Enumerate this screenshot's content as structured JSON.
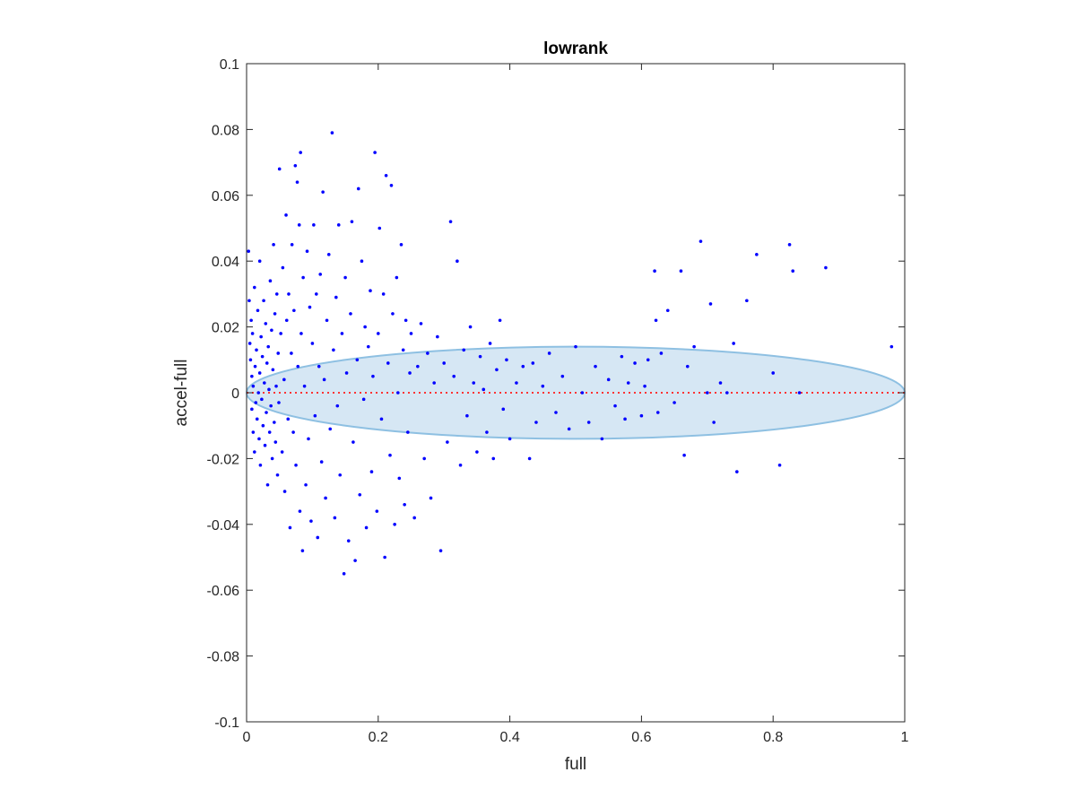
{
  "chart_data": {
    "type": "scatter",
    "title": "lowrank",
    "xlabel": "full",
    "ylabel": "accel-full",
    "xlim": [
      0,
      1
    ],
    "ylim": [
      -0.1,
      0.1
    ],
    "x_ticks": [
      "0",
      "0.2",
      "0.4",
      "0.6",
      "0.8",
      "1"
    ],
    "y_ticks": [
      "-0.1",
      "-0.08",
      "-0.06",
      "-0.04",
      "-0.02",
      "0",
      "0.02",
      "0.04",
      "0.06",
      "0.08",
      "0.1"
    ],
    "grid": false,
    "point_color": "#0000ff",
    "reference_line": {
      "y": 0,
      "color": "#ff3333",
      "style": "dotted"
    },
    "ellipse": {
      "center_x": 0.5,
      "center_y": 0,
      "radius_x": 0.5,
      "radius_y": 0.014,
      "fill": "#d6e7f4",
      "stroke": "#8ec0e2"
    },
    "points": [
      [
        0.003,
        0.043
      ],
      [
        0.004,
        0.028
      ],
      [
        0.005,
        0.015
      ],
      [
        0.006,
        0.01
      ],
      [
        0.007,
        0.022
      ],
      [
        0.008,
        0.005
      ],
      [
        0.008,
        -0.005
      ],
      [
        0.009,
        0.018
      ],
      [
        0.01,
        -0.012
      ],
      [
        0.01,
        0.002
      ],
      [
        0.012,
        0.032
      ],
      [
        0.012,
        -0.018
      ],
      [
        0.013,
        0.008
      ],
      [
        0.014,
        -0.003
      ],
      [
        0.015,
        0.013
      ],
      [
        0.016,
        -0.008
      ],
      [
        0.017,
        0.025
      ],
      [
        0.018,
        0.0
      ],
      [
        0.019,
        -0.014
      ],
      [
        0.02,
        0.04
      ],
      [
        0.02,
        0.006
      ],
      [
        0.021,
        -0.022
      ],
      [
        0.022,
        0.017
      ],
      [
        0.023,
        -0.002
      ],
      [
        0.024,
        0.011
      ],
      [
        0.025,
        -0.01
      ],
      [
        0.026,
        0.028
      ],
      [
        0.027,
        0.003
      ],
      [
        0.028,
        -0.016
      ],
      [
        0.029,
        0.021
      ],
      [
        0.03,
        -0.006
      ],
      [
        0.031,
        0.009
      ],
      [
        0.032,
        -0.028
      ],
      [
        0.033,
        0.014
      ],
      [
        0.034,
        0.001
      ],
      [
        0.035,
        -0.012
      ],
      [
        0.036,
        0.034
      ],
      [
        0.037,
        -0.004
      ],
      [
        0.038,
        0.019
      ],
      [
        0.039,
        -0.02
      ],
      [
        0.04,
        0.007
      ],
      [
        0.041,
        0.045
      ],
      [
        0.042,
        -0.009
      ],
      [
        0.043,
        0.024
      ],
      [
        0.044,
        -0.015
      ],
      [
        0.045,
        0.002
      ],
      [
        0.046,
        0.03
      ],
      [
        0.047,
        -0.025
      ],
      [
        0.048,
        0.012
      ],
      [
        0.049,
        -0.003
      ],
      [
        0.05,
        0.068
      ],
      [
        0.052,
        0.018
      ],
      [
        0.054,
        -0.018
      ],
      [
        0.055,
        0.038
      ],
      [
        0.057,
        0.004
      ],
      [
        0.058,
        -0.03
      ],
      [
        0.06,
        0.054
      ],
      [
        0.061,
        0.022
      ],
      [
        0.063,
        -0.008
      ],
      [
        0.064,
        0.03
      ],
      [
        0.066,
        -0.041
      ],
      [
        0.068,
        0.012
      ],
      [
        0.069,
        0.045
      ],
      [
        0.071,
        -0.012
      ],
      [
        0.072,
        0.025
      ],
      [
        0.074,
        0.069
      ],
      [
        0.075,
        -0.022
      ],
      [
        0.077,
        0.064
      ],
      [
        0.078,
        0.008
      ],
      [
        0.08,
        0.051
      ],
      [
        0.081,
        -0.036
      ],
      [
        0.082,
        0.073
      ],
      [
        0.083,
        0.018
      ],
      [
        0.085,
        -0.048
      ],
      [
        0.086,
        0.035
      ],
      [
        0.088,
        0.002
      ],
      [
        0.09,
        -0.028
      ],
      [
        0.092,
        0.043
      ],
      [
        0.094,
        -0.014
      ],
      [
        0.096,
        0.026
      ],
      [
        0.098,
        -0.039
      ],
      [
        0.1,
        0.015
      ],
      [
        0.102,
        0.051
      ],
      [
        0.104,
        -0.007
      ],
      [
        0.106,
        0.03
      ],
      [
        0.108,
        -0.044
      ],
      [
        0.11,
        0.008
      ],
      [
        0.112,
        0.036
      ],
      [
        0.114,
        -0.021
      ],
      [
        0.116,
        0.061
      ],
      [
        0.118,
        0.004
      ],
      [
        0.12,
        -0.032
      ],
      [
        0.122,
        0.022
      ],
      [
        0.125,
        0.042
      ],
      [
        0.127,
        -0.011
      ],
      [
        0.13,
        0.079
      ],
      [
        0.132,
        0.013
      ],
      [
        0.134,
        -0.038
      ],
      [
        0.136,
        0.029
      ],
      [
        0.138,
        -0.004
      ],
      [
        0.14,
        0.051
      ],
      [
        0.142,
        -0.025
      ],
      [
        0.145,
        0.018
      ],
      [
        0.148,
        -0.055
      ],
      [
        0.15,
        0.035
      ],
      [
        0.152,
        0.006
      ],
      [
        0.155,
        -0.045
      ],
      [
        0.158,
        0.024
      ],
      [
        0.16,
        0.052
      ],
      [
        0.162,
        -0.015
      ],
      [
        0.165,
        -0.051
      ],
      [
        0.168,
        0.01
      ],
      [
        0.17,
        0.062
      ],
      [
        0.172,
        -0.031
      ],
      [
        0.175,
        0.04
      ],
      [
        0.178,
        -0.002
      ],
      [
        0.18,
        0.02
      ],
      [
        0.182,
        -0.041
      ],
      [
        0.185,
        0.014
      ],
      [
        0.188,
        0.031
      ],
      [
        0.19,
        -0.024
      ],
      [
        0.192,
        0.005
      ],
      [
        0.195,
        0.073
      ],
      [
        0.198,
        -0.036
      ],
      [
        0.2,
        0.018
      ],
      [
        0.202,
        0.05
      ],
      [
        0.205,
        -0.008
      ],
      [
        0.208,
        0.03
      ],
      [
        0.21,
        -0.05
      ],
      [
        0.212,
        0.066
      ],
      [
        0.215,
        0.009
      ],
      [
        0.218,
        -0.019
      ],
      [
        0.22,
        0.063
      ],
      [
        0.222,
        0.024
      ],
      [
        0.225,
        -0.04
      ],
      [
        0.228,
        0.035
      ],
      [
        0.23,
        0.0
      ],
      [
        0.232,
        -0.026
      ],
      [
        0.235,
        0.045
      ],
      [
        0.238,
        0.013
      ],
      [
        0.24,
        -0.034
      ],
      [
        0.242,
        0.022
      ],
      [
        0.245,
        -0.012
      ],
      [
        0.248,
        0.006
      ],
      [
        0.25,
        0.018
      ],
      [
        0.255,
        -0.038
      ],
      [
        0.26,
        0.008
      ],
      [
        0.265,
        0.021
      ],
      [
        0.27,
        -0.02
      ],
      [
        0.275,
        0.012
      ],
      [
        0.28,
        -0.032
      ],
      [
        0.285,
        0.003
      ],
      [
        0.29,
        0.017
      ],
      [
        0.295,
        -0.048
      ],
      [
        0.3,
        0.009
      ],
      [
        0.305,
        -0.015
      ],
      [
        0.31,
        0.052
      ],
      [
        0.315,
        0.005
      ],
      [
        0.32,
        0.04
      ],
      [
        0.325,
        -0.022
      ],
      [
        0.33,
        0.013
      ],
      [
        0.335,
        -0.007
      ],
      [
        0.34,
        0.02
      ],
      [
        0.345,
        0.003
      ],
      [
        0.35,
        -0.018
      ],
      [
        0.355,
        0.011
      ],
      [
        0.36,
        0.001
      ],
      [
        0.365,
        -0.012
      ],
      [
        0.37,
        0.015
      ],
      [
        0.375,
        -0.02
      ],
      [
        0.38,
        0.007
      ],
      [
        0.385,
        0.022
      ],
      [
        0.39,
        -0.005
      ],
      [
        0.395,
        0.01
      ],
      [
        0.4,
        -0.014
      ],
      [
        0.41,
        0.003
      ],
      [
        0.42,
        0.008
      ],
      [
        0.43,
        -0.02
      ],
      [
        0.435,
        0.009
      ],
      [
        0.44,
        -0.009
      ],
      [
        0.45,
        0.002
      ],
      [
        0.46,
        0.012
      ],
      [
        0.47,
        -0.006
      ],
      [
        0.48,
        0.005
      ],
      [
        0.49,
        -0.011
      ],
      [
        0.5,
        0.014
      ],
      [
        0.51,
        0.0
      ],
      [
        0.52,
        -0.009
      ],
      [
        0.53,
        0.008
      ],
      [
        0.54,
        -0.014
      ],
      [
        0.55,
        0.004
      ],
      [
        0.56,
        -0.004
      ],
      [
        0.57,
        0.011
      ],
      [
        0.575,
        -0.008
      ],
      [
        0.58,
        0.003
      ],
      [
        0.59,
        0.009
      ],
      [
        0.6,
        -0.007
      ],
      [
        0.605,
        0.002
      ],
      [
        0.61,
        0.01
      ],
      [
        0.62,
        0.037
      ],
      [
        0.622,
        0.022
      ],
      [
        0.625,
        -0.006
      ],
      [
        0.63,
        0.012
      ],
      [
        0.64,
        0.025
      ],
      [
        0.65,
        -0.003
      ],
      [
        0.66,
        0.037
      ],
      [
        0.665,
        -0.019
      ],
      [
        0.67,
        0.008
      ],
      [
        0.68,
        0.014
      ],
      [
        0.69,
        0.046
      ],
      [
        0.7,
        0.0
      ],
      [
        0.705,
        0.027
      ],
      [
        0.71,
        -0.009
      ],
      [
        0.72,
        0.003
      ],
      [
        0.73,
        0.0
      ],
      [
        0.74,
        0.015
      ],
      [
        0.745,
        -0.024
      ],
      [
        0.76,
        0.028
      ],
      [
        0.775,
        0.042
      ],
      [
        0.8,
        0.006
      ],
      [
        0.81,
        -0.022
      ],
      [
        0.825,
        0.045
      ],
      [
        0.83,
        0.037
      ],
      [
        0.84,
        0.0
      ],
      [
        0.88,
        0.038
      ],
      [
        0.98,
        0.014
      ]
    ]
  }
}
